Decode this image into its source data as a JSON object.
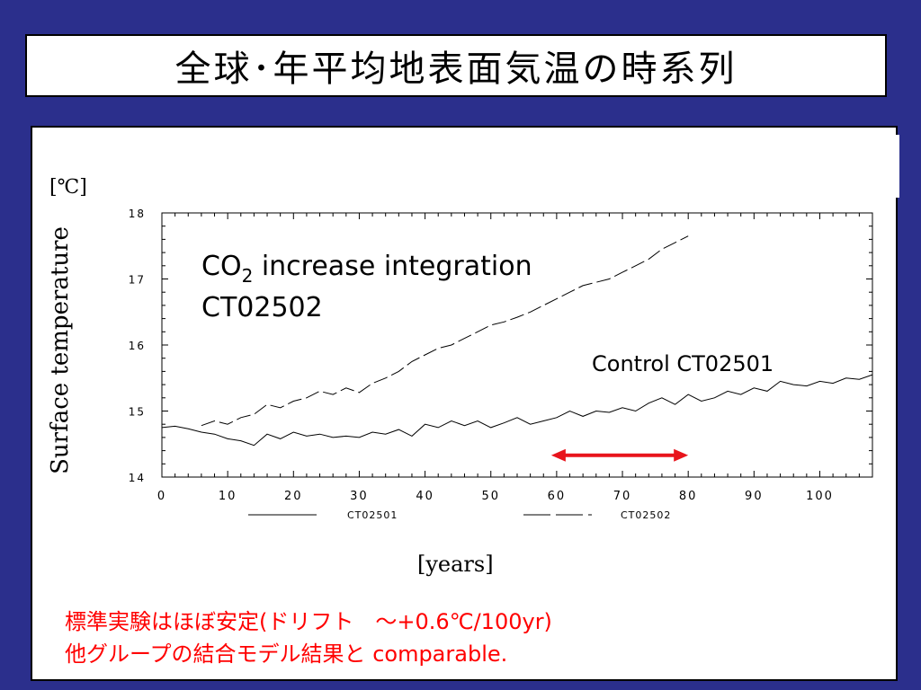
{
  "slide": {
    "title": "全球･年平均地表面気温の時系列",
    "unit_label": "[℃]",
    "ylabel": "Surface temperature",
    "xlabel": "[years]",
    "note_line1": "標準実験はほぼ安定(ドリフト　～+0.6℃/100yr)",
    "note_line2": "他グループの結合モデル結果と comparable."
  },
  "annotations": {
    "co2_line1_main": "CO",
    "co2_line1_sub": "2",
    "co2_line1_rest": " increase integration",
    "co2_line2": "CT02502",
    "control": "Control CT02501",
    "arrow_span_years": [
      60,
      80
    ],
    "arrow_color": "#e8141c"
  },
  "chart_data": {
    "type": "line",
    "xlim": [
      0,
      108
    ],
    "ylim": [
      14,
      18
    ],
    "xticks": [
      "0",
      "10",
      "20",
      "30",
      "40",
      "50",
      "60",
      "70",
      "80",
      "90",
      "100"
    ],
    "yticks": [
      "14",
      "15",
      "16",
      "17",
      "18"
    ],
    "series": [
      {
        "name": "CT02501",
        "style": "solid",
        "x": [
          0,
          2,
          4,
          6,
          8,
          10,
          12,
          14,
          16,
          18,
          20,
          22,
          24,
          26,
          28,
          30,
          32,
          34,
          36,
          38,
          40,
          42,
          44,
          46,
          48,
          50,
          52,
          54,
          56,
          58,
          60,
          62,
          64,
          66,
          68,
          70,
          72,
          74,
          76,
          78,
          80,
          82,
          84,
          86,
          88,
          90,
          92,
          94,
          96,
          98,
          100,
          102,
          104,
          106,
          108
        ],
        "y": [
          14.75,
          14.77,
          14.73,
          14.68,
          14.65,
          14.58,
          14.55,
          14.48,
          14.65,
          14.58,
          14.68,
          14.62,
          14.65,
          14.6,
          14.62,
          14.6,
          14.68,
          14.65,
          14.72,
          14.62,
          14.8,
          14.75,
          14.85,
          14.78,
          14.85,
          14.75,
          14.82,
          14.9,
          14.8,
          14.85,
          14.9,
          15.0,
          14.92,
          15.0,
          14.98,
          15.05,
          15.0,
          15.12,
          15.2,
          15.1,
          15.25,
          15.15,
          15.2,
          15.3,
          15.25,
          15.35,
          15.3,
          15.45,
          15.4,
          15.38,
          15.45,
          15.42,
          15.5,
          15.48,
          15.55
        ]
      },
      {
        "name": "CT02502",
        "style": "dashed",
        "x": [
          6,
          8,
          10,
          12,
          14,
          16,
          18,
          20,
          22,
          24,
          26,
          28,
          30,
          32,
          34,
          36,
          38,
          40,
          42,
          44,
          46,
          48,
          50,
          52,
          54,
          56,
          58,
          60,
          62,
          64,
          66,
          68,
          70,
          72,
          74,
          76,
          78,
          80
        ],
        "y": [
          14.78,
          14.85,
          14.8,
          14.9,
          14.95,
          15.1,
          15.05,
          15.15,
          15.2,
          15.3,
          15.25,
          15.35,
          15.28,
          15.42,
          15.5,
          15.6,
          15.75,
          15.85,
          15.95,
          16.0,
          16.1,
          16.2,
          16.3,
          16.35,
          16.42,
          16.5,
          16.6,
          16.7,
          16.8,
          16.9,
          16.95,
          17.0,
          17.1,
          17.2,
          17.3,
          17.45,
          17.55,
          17.65
        ]
      }
    ]
  }
}
